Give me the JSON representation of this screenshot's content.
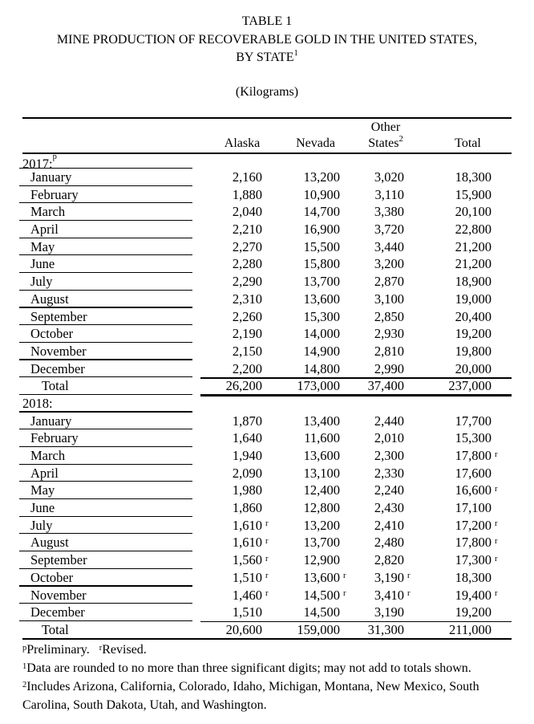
{
  "title": {
    "table_no": "TABLE 1",
    "line2": "MINE PRODUCTION OF RECOVERABLE GOLD IN THE UNITED STATES,",
    "line3_text": "BY STATE",
    "line3_sup": "1",
    "units": "(Kilograms)"
  },
  "table": {
    "header": {
      "other_top": "Other",
      "col1": "Alaska",
      "col2": "Nevada",
      "col3_text": "States",
      "col3_sup": "2",
      "col4": "Total"
    },
    "column_keys": [
      "alaska",
      "nevada",
      "other-states",
      "total"
    ],
    "sections": [
      {
        "year_label": "2017:",
        "year_sup": "p",
        "months": [
          {
            "label": "January",
            "cells": [
              [
                "2,160",
                ""
              ],
              [
                "13,200",
                ""
              ],
              [
                "3,020",
                ""
              ],
              [
                "18,300",
                ""
              ]
            ]
          },
          {
            "label": "February",
            "cells": [
              [
                "1,880",
                ""
              ],
              [
                "10,900",
                ""
              ],
              [
                "3,110",
                ""
              ],
              [
                "15,900",
                ""
              ]
            ]
          },
          {
            "label": "March",
            "cells": [
              [
                "2,040",
                ""
              ],
              [
                "14,700",
                ""
              ],
              [
                "3,380",
                ""
              ],
              [
                "20,100",
                ""
              ]
            ]
          },
          {
            "label": "April",
            "cells": [
              [
                "2,210",
                ""
              ],
              [
                "16,900",
                ""
              ],
              [
                "3,720",
                ""
              ],
              [
                "22,800",
                ""
              ]
            ]
          },
          {
            "label": "May",
            "cells": [
              [
                "2,270",
                ""
              ],
              [
                "15,500",
                ""
              ],
              [
                "3,440",
                ""
              ],
              [
                "21,200",
                ""
              ]
            ]
          },
          {
            "label": "June",
            "cells": [
              [
                "2,280",
                ""
              ],
              [
                "15,800",
                ""
              ],
              [
                "3,200",
                ""
              ],
              [
                "21,200",
                ""
              ]
            ]
          },
          {
            "label": "July",
            "cells": [
              [
                "2,290",
                ""
              ],
              [
                "13,700",
                ""
              ],
              [
                "2,870",
                ""
              ],
              [
                "18,900",
                ""
              ]
            ]
          },
          {
            "label": "August",
            "cells": [
              [
                "2,310",
                ""
              ],
              [
                "13,600",
                ""
              ],
              [
                "3,100",
                ""
              ],
              [
                "19,000",
                ""
              ]
            ]
          },
          {
            "label": "September",
            "cells": [
              [
                "2,260",
                ""
              ],
              [
                "15,300",
                ""
              ],
              [
                "2,850",
                ""
              ],
              [
                "20,400",
                ""
              ]
            ]
          },
          {
            "label": "October",
            "cells": [
              [
                "2,190",
                ""
              ],
              [
                "14,000",
                ""
              ],
              [
                "2,930",
                ""
              ],
              [
                "19,200",
                ""
              ]
            ]
          },
          {
            "label": "November",
            "cells": [
              [
                "2,150",
                ""
              ],
              [
                "14,900",
                ""
              ],
              [
                "2,810",
                ""
              ],
              [
                "19,800",
                ""
              ]
            ]
          },
          {
            "label": "December",
            "cells": [
              [
                "2,200",
                ""
              ],
              [
                "14,800",
                ""
              ],
              [
                "2,990",
                ""
              ],
              [
                "20,000",
                ""
              ]
            ]
          }
        ],
        "total_label": "Total",
        "total_cells": [
          [
            "26,200",
            ""
          ],
          [
            "173,000",
            ""
          ],
          [
            "37,400",
            ""
          ],
          [
            "237,000",
            ""
          ]
        ]
      },
      {
        "year_label": "2018:",
        "year_sup": "",
        "months": [
          {
            "label": "January",
            "cells": [
              [
                "1,870",
                ""
              ],
              [
                "13,400",
                ""
              ],
              [
                "2,440",
                ""
              ],
              [
                "17,700",
                ""
              ]
            ]
          },
          {
            "label": "February",
            "cells": [
              [
                "1,640",
                ""
              ],
              [
                "11,600",
                ""
              ],
              [
                "2,010",
                ""
              ],
              [
                "15,300",
                ""
              ]
            ]
          },
          {
            "label": "March",
            "cells": [
              [
                "1,940",
                ""
              ],
              [
                "13,600",
                ""
              ],
              [
                "2,300",
                ""
              ],
              [
                "17,800",
                "r"
              ]
            ]
          },
          {
            "label": "April",
            "cells": [
              [
                "2,090",
                ""
              ],
              [
                "13,100",
                ""
              ],
              [
                "2,330",
                ""
              ],
              [
                "17,600",
                ""
              ]
            ]
          },
          {
            "label": "May",
            "cells": [
              [
                "1,980",
                ""
              ],
              [
                "12,400",
                ""
              ],
              [
                "2,240",
                ""
              ],
              [
                "16,600",
                "r"
              ]
            ]
          },
          {
            "label": "June",
            "cells": [
              [
                "1,860",
                ""
              ],
              [
                "12,800",
                ""
              ],
              [
                "2,430",
                ""
              ],
              [
                "17,100",
                ""
              ]
            ]
          },
          {
            "label": "July",
            "cells": [
              [
                "1,610",
                "r"
              ],
              [
                "13,200",
                ""
              ],
              [
                "2,410",
                ""
              ],
              [
                "17,200",
                "r"
              ]
            ]
          },
          {
            "label": "August",
            "cells": [
              [
                "1,610",
                "r"
              ],
              [
                "13,700",
                ""
              ],
              [
                "2,480",
                ""
              ],
              [
                "17,800",
                "r"
              ]
            ]
          },
          {
            "label": "September",
            "cells": [
              [
                "1,560",
                "r"
              ],
              [
                "12,900",
                ""
              ],
              [
                "2,820",
                ""
              ],
              [
                "17,300",
                "r"
              ]
            ]
          },
          {
            "label": "October",
            "cells": [
              [
                "1,510",
                "r"
              ],
              [
                "13,600",
                "r"
              ],
              [
                "3,190",
                "r"
              ],
              [
                "18,300",
                ""
              ]
            ]
          },
          {
            "label": "November",
            "cells": [
              [
                "1,460",
                "r"
              ],
              [
                "14,500",
                "r"
              ],
              [
                "3,410",
                "r"
              ],
              [
                "19,400",
                "r"
              ]
            ]
          },
          {
            "label": "December",
            "cells": [
              [
                "1,510",
                ""
              ],
              [
                "14,500",
                ""
              ],
              [
                "3,190",
                ""
              ],
              [
                "19,200",
                ""
              ]
            ]
          }
        ],
        "total_label": "Total",
        "total_cells": [
          [
            "20,600",
            ""
          ],
          [
            "159,000",
            ""
          ],
          [
            "31,300",
            ""
          ],
          [
            "211,000",
            ""
          ]
        ]
      }
    ]
  },
  "footnotes": {
    "f1a_sup": "p",
    "f1a_text": "Preliminary. ",
    "f1b_sup": "r",
    "f1b_text": "Revised.",
    "f2_sup": "1",
    "f2_text": "Data are rounded to no more than three significant digits; may not add to totals shown.",
    "f3_sup": "2",
    "f3_text": "Includes Arizona, California, Colorado, Idaho, Michigan, Montana, New Mexico, South",
    "f4_text": "Carolina, South Dakota, Utah, and Washington."
  }
}
